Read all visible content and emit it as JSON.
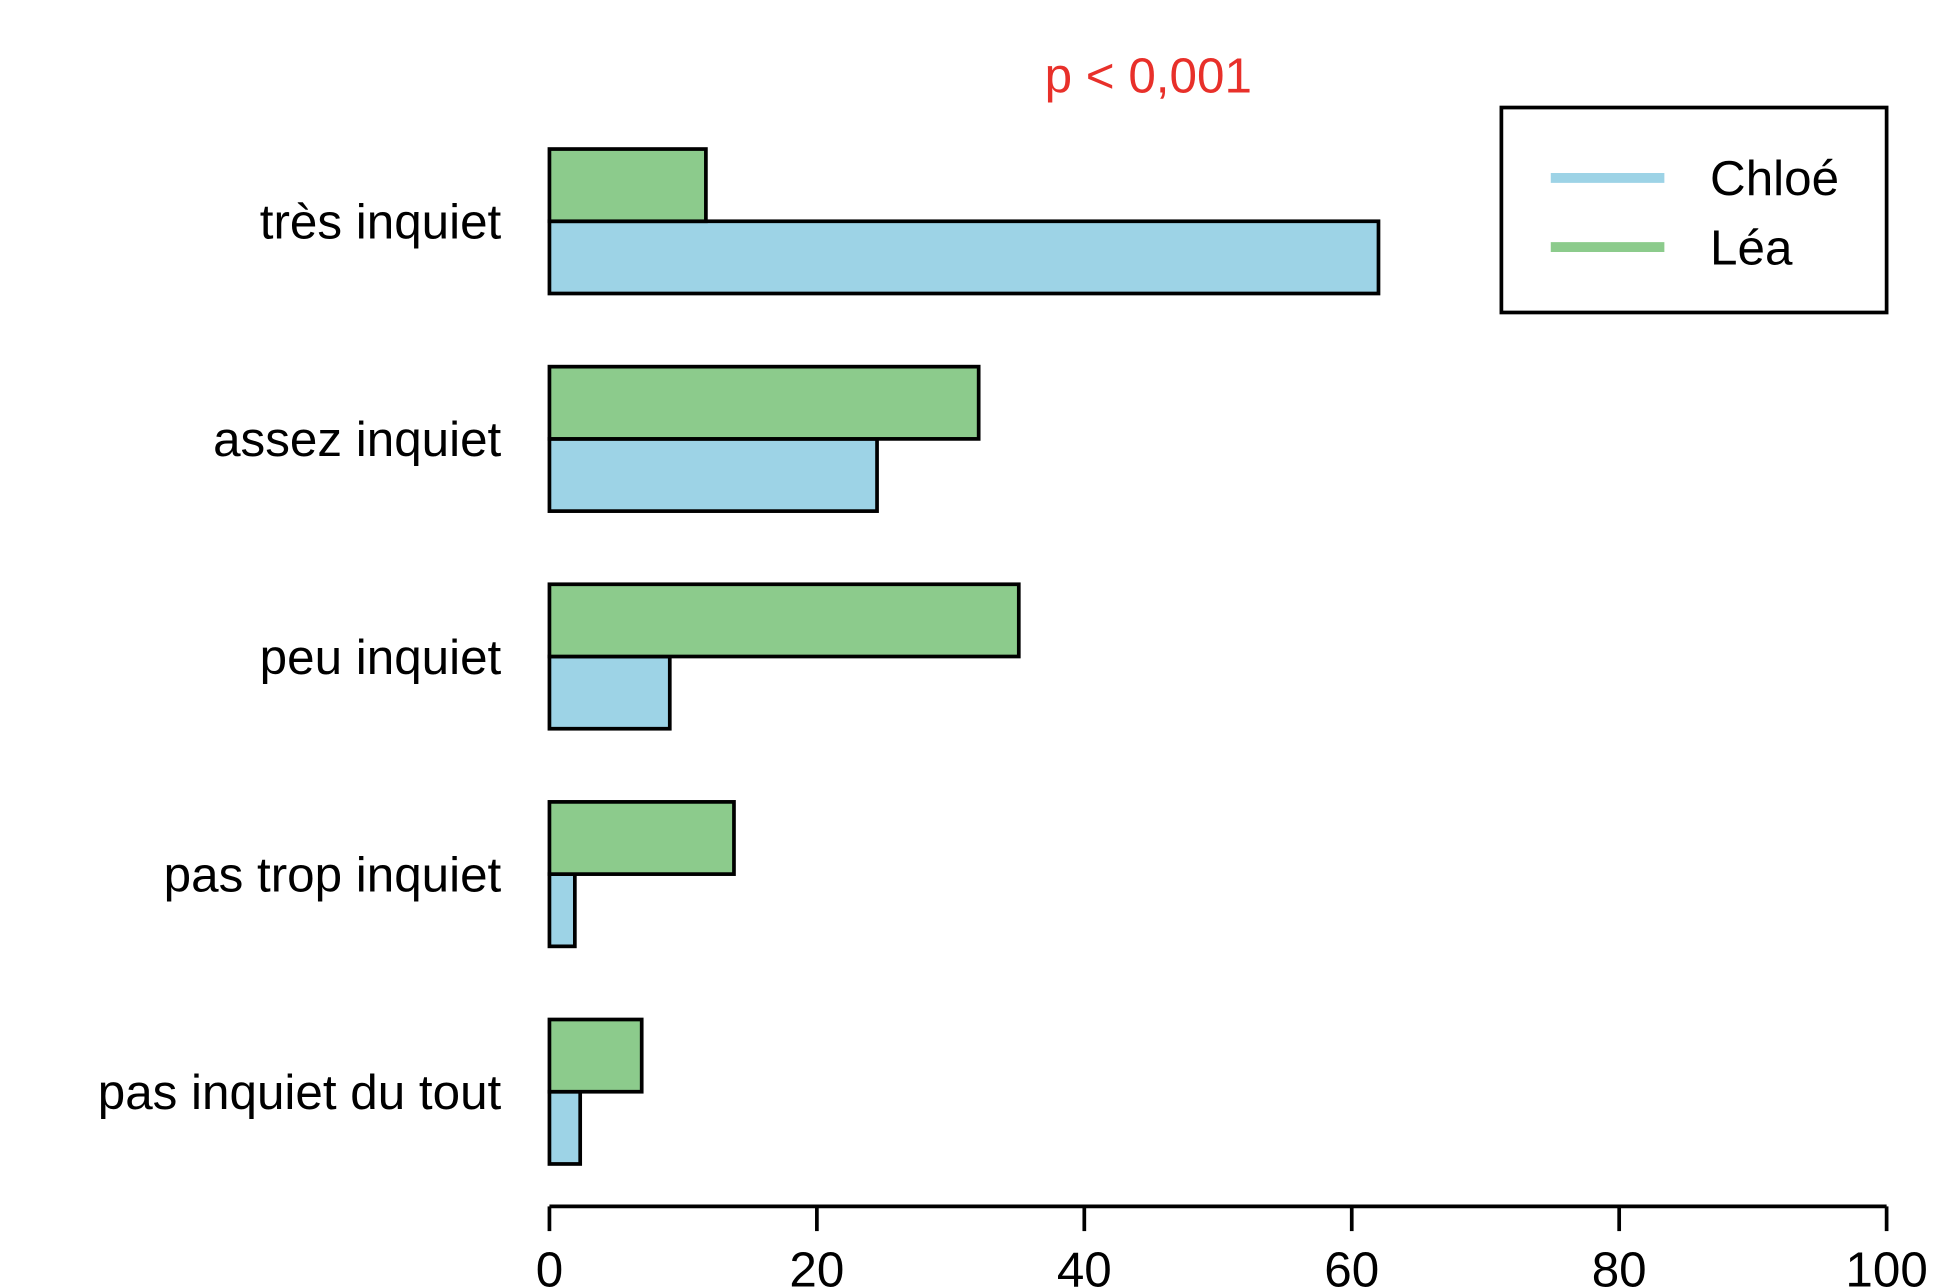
{
  "chart_data": {
    "type": "barh",
    "annotation": "p < 0,001",
    "categories": [
      "très inquiet",
      "assez inquiet",
      "peu inquiet",
      "pas trop inquiet",
      "pas inquiet du tout"
    ],
    "series": [
      {
        "name": "Chloé",
        "color": "#9dd3e6",
        "values": [
          62.0,
          24.5,
          9.0,
          1.9,
          2.3
        ]
      },
      {
        "name": "Léa",
        "color": "#8ccb8c",
        "values": [
          11.7,
          32.1,
          35.1,
          13.8,
          6.9
        ]
      }
    ],
    "xlim": [
      0,
      100
    ],
    "xticks": [
      0,
      20,
      40,
      60,
      80,
      100
    ],
    "legend": "top-right"
  }
}
